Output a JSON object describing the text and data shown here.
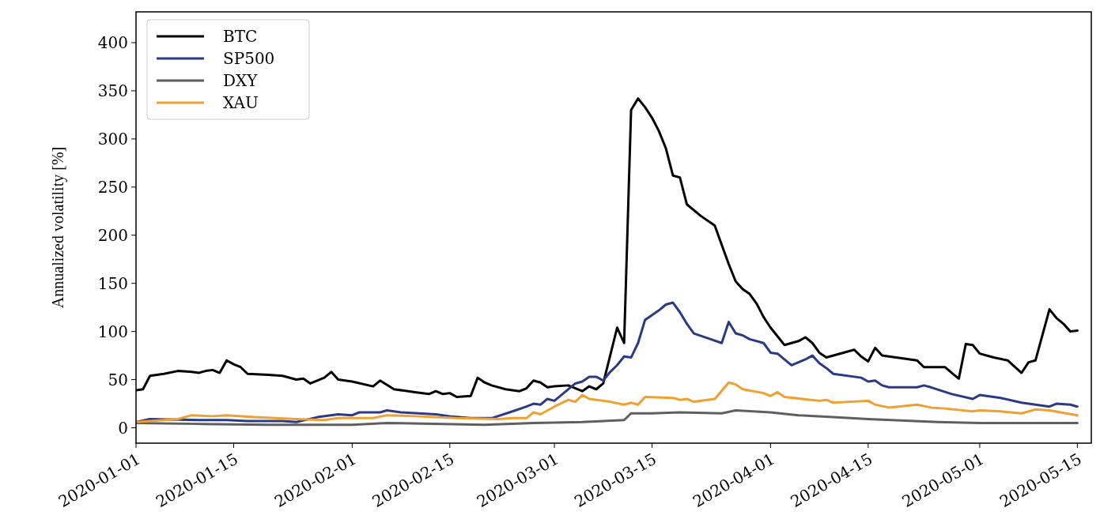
{
  "chart_data": {
    "type": "line",
    "ylabel": "Annualized volatility [%]",
    "xlim": [
      "2020-01-01",
      "2020-05-17"
    ],
    "ylim": [
      -16,
      432
    ],
    "xticks": [
      "2020-01-01",
      "2020-01-15",
      "2020-02-01",
      "2020-02-15",
      "2020-03-01",
      "2020-03-15",
      "2020-04-01",
      "2020-04-15",
      "2020-05-01",
      "2020-05-15"
    ],
    "yticks": [
      0,
      50,
      100,
      150,
      200,
      250,
      300,
      350,
      400
    ],
    "grid": false,
    "legend": "top left",
    "line_style": "solid",
    "marker": "none",
    "series": [
      {
        "name": "BTC",
        "color": "#000000",
        "x": [
          "2020-01-01",
          "2020-01-02",
          "2020-01-03",
          "2020-01-05",
          "2020-01-07",
          "2020-01-09",
          "2020-01-10",
          "2020-01-11",
          "2020-01-12",
          "2020-01-13",
          "2020-01-14",
          "2020-01-15",
          "2020-01-16",
          "2020-01-17",
          "2020-01-20",
          "2020-01-22",
          "2020-01-24",
          "2020-01-25",
          "2020-01-26",
          "2020-01-28",
          "2020-01-29",
          "2020-01-30",
          "2020-02-01",
          "2020-02-04",
          "2020-02-05",
          "2020-02-07",
          "2020-02-10",
          "2020-02-12",
          "2020-02-13",
          "2020-02-14",
          "2020-02-15",
          "2020-02-16",
          "2020-02-18",
          "2020-02-19",
          "2020-02-20",
          "2020-02-21",
          "2020-02-23",
          "2020-02-25",
          "2020-02-26",
          "2020-02-27",
          "2020-02-28",
          "2020-02-29",
          "2020-03-01",
          "2020-03-03",
          "2020-03-05",
          "2020-03-06",
          "2020-03-07",
          "2020-03-08",
          "2020-03-09",
          "2020-03-10",
          "2020-03-11",
          "2020-03-12",
          "2020-03-13",
          "2020-03-14",
          "2020-03-15",
          "2020-03-16",
          "2020-03-17",
          "2020-03-18",
          "2020-03-19",
          "2020-03-20",
          "2020-03-22",
          "2020-03-24",
          "2020-03-25",
          "2020-03-26",
          "2020-03-27",
          "2020-03-28",
          "2020-03-29",
          "2020-03-30",
          "2020-03-31",
          "2020-04-01",
          "2020-04-03",
          "2020-04-05",
          "2020-04-06",
          "2020-04-07",
          "2020-04-08",
          "2020-04-09",
          "2020-04-13",
          "2020-04-14",
          "2020-04-15",
          "2020-04-16",
          "2020-04-17",
          "2020-04-20",
          "2020-04-22",
          "2020-04-23",
          "2020-04-26",
          "2020-04-27",
          "2020-04-28",
          "2020-04-29",
          "2020-04-30",
          "2020-05-01",
          "2020-05-03",
          "2020-05-05",
          "2020-05-07",
          "2020-05-08",
          "2020-05-09",
          "2020-05-11",
          "2020-05-12",
          "2020-05-13",
          "2020-05-14",
          "2020-05-15"
        ],
        "values": [
          39,
          40,
          54,
          56,
          59,
          58,
          57,
          59,
          60,
          57,
          70,
          66,
          63,
          56,
          55,
          54,
          50,
          51,
          46,
          52,
          58,
          50,
          48,
          43,
          49,
          40,
          37,
          35,
          38,
          35,
          36,
          32,
          33,
          52,
          47,
          44,
          40,
          38,
          41,
          49,
          47,
          42,
          43,
          44,
          38,
          43,
          40,
          46,
          75,
          104,
          88,
          330,
          342,
          333,
          322,
          308,
          290,
          262,
          260,
          232,
          220,
          210,
          190,
          170,
          152,
          144,
          139,
          129,
          115,
          104,
          86,
          90,
          94,
          88,
          78,
          73,
          81,
          74,
          69,
          83,
          75,
          72,
          70,
          63,
          63,
          57,
          51,
          87,
          86,
          77,
          73,
          70,
          57,
          68,
          70,
          123,
          114,
          108,
          100,
          101
        ]
      },
      {
        "name": "SP500",
        "color": "#2b3a85",
        "x": [
          "2020-01-01",
          "2020-01-03",
          "2020-01-10",
          "2020-01-14",
          "2020-01-17",
          "2020-01-22",
          "2020-01-24",
          "2020-01-27",
          "2020-01-30",
          "2020-02-01",
          "2020-02-02",
          "2020-02-05",
          "2020-02-06",
          "2020-02-08",
          "2020-02-13",
          "2020-02-15",
          "2020-02-18",
          "2020-02-21",
          "2020-02-24",
          "2020-02-26",
          "2020-02-27",
          "2020-02-28",
          "2020-02-29",
          "2020-03-01",
          "2020-03-04",
          "2020-03-05",
          "2020-03-06",
          "2020-03-07",
          "2020-03-08",
          "2020-03-09",
          "2020-03-10",
          "2020-03-11",
          "2020-03-12",
          "2020-03-13",
          "2020-03-14",
          "2020-03-16",
          "2020-03-17",
          "2020-03-18",
          "2020-03-19",
          "2020-03-20",
          "2020-03-21",
          "2020-03-23",
          "2020-03-25",
          "2020-03-26",
          "2020-03-27",
          "2020-03-28",
          "2020-03-29",
          "2020-03-31",
          "2020-04-01",
          "2020-04-02",
          "2020-04-04",
          "2020-04-06",
          "2020-04-07",
          "2020-04-08",
          "2020-04-09",
          "2020-04-10",
          "2020-04-14",
          "2020-04-15",
          "2020-04-16",
          "2020-04-17",
          "2020-04-18",
          "2020-04-22",
          "2020-04-23",
          "2020-04-24",
          "2020-04-27",
          "2020-04-30",
          "2020-05-01",
          "2020-05-04",
          "2020-05-07",
          "2020-05-11",
          "2020-05-12",
          "2020-05-14",
          "2020-05-15"
        ],
        "values": [
          6,
          9,
          8,
          8,
          7,
          7,
          6,
          11,
          14,
          13,
          16,
          16,
          18,
          16,
          14,
          12,
          10,
          10,
          17,
          22,
          25,
          24,
          30,
          28,
          46,
          48,
          53,
          53,
          49,
          58,
          65,
          74,
          73,
          88,
          112,
          122,
          128,
          130,
          120,
          108,
          98,
          93,
          88,
          110,
          98,
          96,
          92,
          88,
          78,
          77,
          65,
          71,
          75,
          67,
          62,
          56,
          52,
          48,
          49,
          44,
          42,
          42,
          44,
          42,
          35,
          30,
          34,
          31,
          26,
          22,
          25,
          24,
          22
        ]
      },
      {
        "name": "DXY",
        "color": "#5f5f5f",
        "x": [
          "2020-01-01",
          "2020-01-10",
          "2020-01-20",
          "2020-02-01",
          "2020-02-06",
          "2020-02-20",
          "2020-02-27",
          "2020-03-05",
          "2020-03-11",
          "2020-03-12",
          "2020-03-15",
          "2020-03-19",
          "2020-03-25",
          "2020-03-27",
          "2020-04-01",
          "2020-04-05",
          "2020-04-10",
          "2020-04-15",
          "2020-04-25",
          "2020-05-01",
          "2020-05-15"
        ],
        "values": [
          5,
          4,
          3,
          3,
          5,
          3,
          5,
          6,
          8,
          15,
          15,
          16,
          15,
          18,
          16,
          13,
          11,
          9,
          6,
          5,
          5
        ]
      },
      {
        "name": "XAU",
        "color": "#f0a030",
        "x": [
          "2020-01-01",
          "2020-01-05",
          "2020-01-07",
          "2020-01-09",
          "2020-01-12",
          "2020-01-14",
          "2020-01-18",
          "2020-01-24",
          "2020-01-28",
          "2020-01-30",
          "2020-02-04",
          "2020-02-06",
          "2020-02-10",
          "2020-02-16",
          "2020-02-22",
          "2020-02-24",
          "2020-02-26",
          "2020-02-27",
          "2020-02-28",
          "2020-03-01",
          "2020-03-03",
          "2020-03-04",
          "2020-03-05",
          "2020-03-06",
          "2020-03-09",
          "2020-03-11",
          "2020-03-12",
          "2020-03-13",
          "2020-03-14",
          "2020-03-18",
          "2020-03-19",
          "2020-03-20",
          "2020-03-21",
          "2020-03-24",
          "2020-03-26",
          "2020-03-27",
          "2020-03-28",
          "2020-03-31",
          "2020-04-01",
          "2020-04-02",
          "2020-04-03",
          "2020-04-08",
          "2020-04-09",
          "2020-04-10",
          "2020-04-15",
          "2020-04-16",
          "2020-04-18",
          "2020-04-22",
          "2020-04-24",
          "2020-04-26",
          "2020-04-30",
          "2020-05-01",
          "2020-05-04",
          "2020-05-07",
          "2020-05-09",
          "2020-05-11",
          "2020-05-15"
        ],
        "values": [
          6,
          8,
          9,
          13,
          12,
          13,
          11,
          9,
          8,
          10,
          10,
          13,
          12,
          10,
          9,
          10,
          10,
          16,
          14,
          22,
          29,
          27,
          34,
          30,
          27,
          24,
          26,
          24,
          32,
          31,
          29,
          30,
          27,
          30,
          47,
          45,
          40,
          36,
          33,
          37,
          32,
          28,
          29,
          26,
          28,
          24,
          21,
          24,
          21,
          20,
          17,
          18,
          17,
          15,
          19,
          18,
          13
        ]
      }
    ]
  }
}
